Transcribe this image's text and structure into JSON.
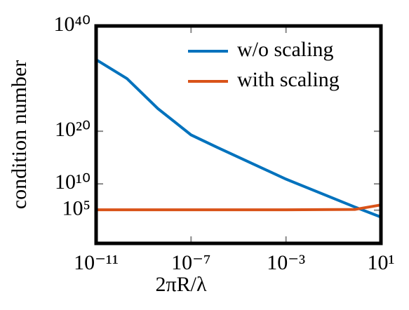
{
  "chart_data": {
    "type": "line",
    "xlabel": "2πR/λ",
    "ylabel": "condition number",
    "x": [
      1e-11,
      2e-10,
      4e-09,
      1e-07,
      1.3e-06,
      0.001,
      0.8,
      10
    ],
    "series": [
      {
        "name": "w/o scaling",
        "color": "#0072bd",
        "values": [
          4e+33,
          1e+30,
          2e+24,
          2e+19,
          8e+16,
          80000000000.0,
          400000.0,
          5000.0
        ]
      },
      {
        "name": "with scaling",
        "color": "#d95319",
        "values": [
          120000.0,
          120000.0,
          120000.0,
          120000.0,
          120000.0,
          120000.0,
          140000.0,
          1000000.0
        ]
      }
    ],
    "xscale": "log",
    "yscale": "log",
    "xlim": [
      1e-11,
      10
    ],
    "ylim": [
      0.05,
      1e+40
    ],
    "xticks": [
      {
        "value": 1e-11,
        "label": "10⁻¹¹"
      },
      {
        "value": 1e-07,
        "label": "10⁻⁷"
      },
      {
        "value": 0.001,
        "label": "10⁻³"
      },
      {
        "value": 10,
        "label": "10¹"
      }
    ],
    "yticks": [
      {
        "value": 100000.0,
        "label": "10⁵"
      },
      {
        "value": 10000000000.0,
        "label": "10¹⁰"
      },
      {
        "value": 1e+20,
        "label": "10²⁰"
      },
      {
        "value": 1e+40,
        "label": "10⁴⁰"
      }
    ],
    "legend": "upper right"
  }
}
